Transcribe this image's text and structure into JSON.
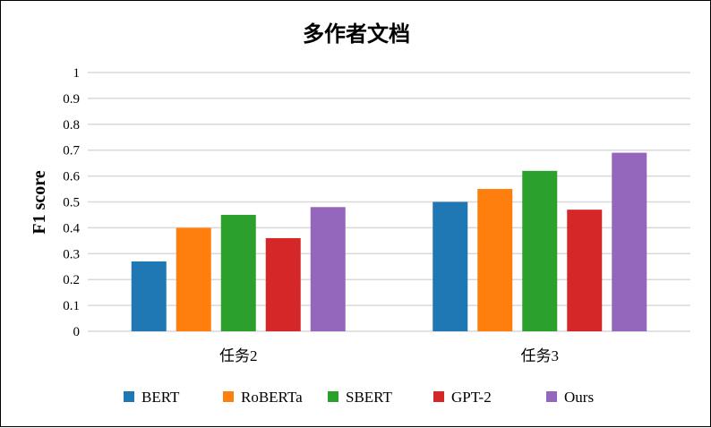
{
  "chart_data": {
    "type": "bar",
    "title": "多作者文档",
    "xlabel": "",
    "ylabel": "F1 score",
    "ylim": [
      0,
      1
    ],
    "yticks": [
      "0",
      "0.1",
      "0.2",
      "0.3",
      "0.4",
      "0.5",
      "0.6",
      "0.7",
      "0.8",
      "0.9",
      "1"
    ],
    "categories": [
      "任务2",
      "任务3"
    ],
    "grid": true,
    "legend_position": "bottom",
    "series": [
      {
        "name": "BERT",
        "color": "#1f77b4",
        "values": [
          0.27,
          0.5
        ]
      },
      {
        "name": "RoBERTa",
        "color": "#ff7f0e",
        "values": [
          0.4,
          0.55
        ]
      },
      {
        "name": "SBERT",
        "color": "#2ca02c",
        "values": [
          0.45,
          0.62
        ]
      },
      {
        "name": "GPT-2",
        "color": "#d62728",
        "values": [
          0.36,
          0.47
        ]
      },
      {
        "name": "Ours",
        "color": "#9467bd",
        "values": [
          0.48,
          0.69
        ]
      }
    ]
  }
}
